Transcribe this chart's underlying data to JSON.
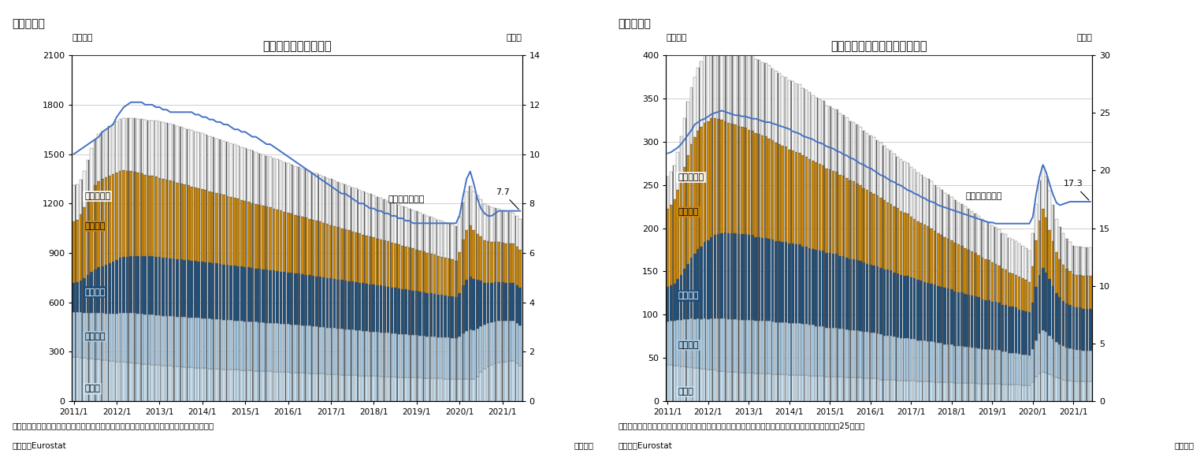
{
  "chart1": {
    "title": "失業率と国別失業者数",
    "fig_label": "（図表１）",
    "ylabel_left": "（万人）",
    "ylabel_right": "（％）",
    "ylim_left": [
      0,
      2100
    ],
    "ylim_right": [
      0,
      14
    ],
    "yticks_left": [
      0,
      300,
      600,
      900,
      1200,
      1500,
      1800,
      2100
    ],
    "yticks_right": [
      0,
      2,
      4,
      6,
      8,
      10,
      12,
      14
    ],
    "note1": "（注）季節調整値、その他の国はドイツ・フランス・イタリア・スペインを除くユーロ圏。",
    "source": "（資料）Eurostat",
    "monthly_label": "（月次）",
    "line_label": "失業率（右軸）",
    "line_end_value": "7.7"
  },
  "chart2": {
    "title": "若年失業率と国別若年失業者数",
    "fig_label": "（図表２）",
    "ylabel_left": "（万人）",
    "ylabel_right": "（％）",
    "ylim_left": [
      0,
      400
    ],
    "ylim_right": [
      0,
      30
    ],
    "yticks_left": [
      0,
      50,
      100,
      150,
      200,
      250,
      300,
      350,
      400
    ],
    "yticks_right": [
      0,
      5,
      10,
      15,
      20,
      25,
      30
    ],
    "note1": "（注）季節調整値、その他の国はドイツ・フランス・イタリア・スペインを除くユーロ圏。若年者は25才未満",
    "source": "（資料）Eurostat",
    "monthly_label": "（月次）",
    "line_label": "失業率（右軸）",
    "line_end_value": "17.3"
  },
  "x_labels": [
    "2011/1",
    "2012/1",
    "2013/1",
    "2014/1",
    "2015/1",
    "2016/1",
    "2017/1",
    "2018/1",
    "2019/1",
    "2020/1",
    "2021/1"
  ],
  "col_doitsu": "#b8d4e8",
  "col_france": "#b8d4e8",
  "col_italia": "#1f4e79",
  "col_spain": "#c8860a",
  "col_others": "#f5f5f5",
  "col_line": "#4472c4",
  "c1_doitsu": [
    270,
    268,
    265,
    262,
    260,
    258,
    255,
    253,
    250,
    248,
    246,
    244,
    241,
    239,
    237,
    235,
    233,
    231,
    229,
    227,
    225,
    223,
    222,
    220,
    218,
    216,
    215,
    213,
    212,
    210,
    209,
    207,
    206,
    205,
    203,
    202,
    201,
    199,
    198,
    197,
    196,
    195,
    193,
    192,
    191,
    190,
    189,
    188,
    187,
    186,
    185,
    184,
    183,
    182,
    181,
    180,
    179,
    178,
    177,
    176,
    175,
    174,
    173,
    172,
    171,
    170,
    169,
    168,
    167,
    166,
    165,
    164,
    163,
    162,
    161,
    160,
    159,
    158,
    157,
    156,
    155,
    154,
    153,
    152,
    152,
    151,
    150,
    149,
    148,
    147,
    146,
    145,
    145,
    144,
    143,
    142,
    142,
    141,
    140,
    139,
    139,
    138,
    137,
    137,
    136,
    136,
    135,
    134,
    134,
    133,
    133,
    132,
    132,
    150,
    175,
    195,
    210,
    220,
    230,
    235,
    238,
    240,
    242,
    244,
    230,
    215
  ],
  "c1_france": [
    270,
    272,
    274,
    276,
    278,
    280,
    282,
    283,
    284,
    285,
    287,
    289,
    292,
    295,
    298,
    300,
    302,
    303,
    303,
    303,
    302,
    302,
    302,
    302,
    302,
    302,
    302,
    303,
    303,
    303,
    303,
    303,
    303,
    303,
    303,
    303,
    303,
    303,
    302,
    302,
    302,
    302,
    301,
    301,
    300,
    300,
    299,
    299,
    298,
    298,
    297,
    297,
    296,
    296,
    295,
    295,
    294,
    294,
    293,
    292,
    292,
    291,
    290,
    290,
    289,
    288,
    288,
    287,
    286,
    285,
    284,
    283,
    282,
    281,
    280,
    279,
    278,
    277,
    276,
    275,
    274,
    273,
    272,
    271,
    270,
    269,
    268,
    267,
    266,
    265,
    264,
    263,
    262,
    261,
    260,
    259,
    258,
    257,
    256,
    255,
    254,
    253,
    252,
    252,
    251,
    250,
    249,
    248,
    260,
    280,
    295,
    305,
    300,
    290,
    280,
    270,
    265,
    260,
    255,
    252,
    250,
    248,
    247,
    246,
    245,
    244
  ],
  "c1_italia": [
    180,
    182,
    194,
    210,
    228,
    245,
    262,
    276,
    285,
    295,
    305,
    315,
    325,
    335,
    340,
    342,
    345,
    347,
    349,
    351,
    353,
    355,
    355,
    355,
    354,
    353,
    352,
    351,
    350,
    349,
    348,
    347,
    346,
    345,
    344,
    343,
    342,
    341,
    340,
    339,
    338,
    337,
    336,
    335,
    334,
    333,
    332,
    330,
    329,
    328,
    326,
    325,
    324,
    323,
    322,
    321,
    319,
    318,
    317,
    316,
    315,
    313,
    312,
    311,
    310,
    308,
    307,
    306,
    305,
    304,
    303,
    301,
    300,
    299,
    298,
    296,
    295,
    294,
    293,
    292,
    290,
    289,
    288,
    287,
    285,
    284,
    283,
    281,
    280,
    279,
    277,
    276,
    274,
    273,
    272,
    270,
    268,
    267,
    265,
    263,
    261,
    259,
    257,
    256,
    254,
    252,
    250,
    248,
    262,
    290,
    310,
    318,
    310,
    295,
    275,
    255,
    245,
    240,
    238,
    236,
    234,
    232,
    231,
    230,
    229,
    228
  ],
  "c1_spain": [
    370,
    380,
    400,
    430,
    460,
    490,
    510,
    525,
    530,
    530,
    530,
    530,
    530,
    530,
    525,
    520,
    515,
    510,
    505,
    500,
    495,
    490,
    488,
    485,
    482,
    478,
    475,
    472,
    468,
    465,
    462,
    458,
    455,
    451,
    448,
    445,
    442,
    438,
    435,
    432,
    428,
    425,
    422,
    418,
    415,
    412,
    408,
    405,
    402,
    398,
    395,
    392,
    388,
    385,
    382,
    379,
    375,
    372,
    369,
    366,
    362,
    359,
    356,
    353,
    350,
    347,
    343,
    340,
    337,
    334,
    330,
    327,
    324,
    321,
    318,
    315,
    312,
    308,
    305,
    302,
    299,
    296,
    293,
    290,
    287,
    284,
    281,
    278,
    275,
    272,
    269,
    266,
    264,
    261,
    258,
    255,
    252,
    249,
    247,
    244,
    241,
    238,
    236,
    233,
    231,
    228,
    225,
    222,
    248,
    280,
    302,
    310,
    295,
    280,
    268,
    258,
    252,
    248,
    245,
    242,
    240,
    238,
    237,
    236,
    235,
    234
  ],
  "c1_others": [
    220,
    215,
    210,
    220,
    240,
    265,
    280,
    285,
    290,
    295,
    300,
    305,
    310,
    315,
    318,
    320,
    322,
    325,
    328,
    330,
    332,
    335,
    338,
    340,
    342,
    343,
    344,
    345,
    345,
    344,
    343,
    342,
    341,
    340,
    339,
    338,
    337,
    335,
    334,
    333,
    332,
    330,
    329,
    327,
    326,
    324,
    323,
    321,
    320,
    318,
    317,
    315,
    313,
    312,
    310,
    308,
    307,
    305,
    303,
    302,
    300,
    298,
    297,
    295,
    293,
    292,
    290,
    288,
    286,
    285,
    283,
    281,
    279,
    277,
    275,
    273,
    271,
    269,
    267,
    265,
    263,
    261,
    259,
    257,
    255,
    253,
    251,
    249,
    247,
    245,
    243,
    241,
    239,
    237,
    235,
    233,
    231,
    229,
    227,
    225,
    223,
    221,
    219,
    217,
    215,
    213,
    211,
    209,
    215,
    225,
    235,
    242,
    238,
    232,
    226,
    220,
    215,
    210,
    206,
    202,
    198,
    195,
    192,
    189,
    186,
    183
  ],
  "c1_line": [
    10.0,
    10.1,
    10.2,
    10.3,
    10.4,
    10.5,
    10.6,
    10.7,
    10.9,
    11.0,
    11.1,
    11.2,
    11.5,
    11.7,
    11.9,
    12.0,
    12.1,
    12.1,
    12.1,
    12.1,
    12.0,
    12.0,
    12.0,
    11.9,
    11.9,
    11.8,
    11.8,
    11.7,
    11.7,
    11.7,
    11.7,
    11.7,
    11.7,
    11.7,
    11.6,
    11.6,
    11.5,
    11.5,
    11.4,
    11.4,
    11.3,
    11.3,
    11.2,
    11.2,
    11.1,
    11.0,
    11.0,
    10.9,
    10.9,
    10.8,
    10.7,
    10.7,
    10.6,
    10.5,
    10.4,
    10.4,
    10.3,
    10.2,
    10.1,
    10.0,
    9.9,
    9.8,
    9.7,
    9.6,
    9.5,
    9.4,
    9.3,
    9.2,
    9.1,
    9.0,
    8.9,
    8.8,
    8.7,
    8.6,
    8.5,
    8.4,
    8.4,
    8.3,
    8.2,
    8.1,
    8.0,
    8.0,
    7.9,
    7.8,
    7.8,
    7.7,
    7.7,
    7.6,
    7.6,
    7.5,
    7.5,
    7.4,
    7.4,
    7.3,
    7.3,
    7.2,
    7.2,
    7.2,
    7.2,
    7.2,
    7.2,
    7.2,
    7.2,
    7.2,
    7.2,
    7.2,
    7.2,
    7.2,
    7.5,
    8.3,
    9.0,
    9.3,
    8.8,
    8.2,
    7.8,
    7.6,
    7.5,
    7.5,
    7.6,
    7.7,
    7.7,
    7.7,
    7.7,
    7.7,
    7.7,
    7.7
  ],
  "c2_doitsu": [
    42,
    42,
    41,
    41,
    40,
    40,
    39,
    39,
    38,
    38,
    37,
    37,
    36,
    36,
    36,
    35,
    35,
    35,
    34,
    34,
    34,
    33,
    33,
    33,
    33,
    33,
    32,
    32,
    32,
    32,
    32,
    31,
    31,
    31,
    31,
    31,
    30,
    30,
    30,
    30,
    30,
    30,
    29,
    29,
    29,
    29,
    29,
    28,
    28,
    28,
    28,
    28,
    28,
    27,
    27,
    27,
    27,
    27,
    26,
    26,
    26,
    26,
    26,
    25,
    25,
    25,
    25,
    25,
    24,
    24,
    24,
    24,
    24,
    24,
    23,
    23,
    23,
    23,
    23,
    22,
    22,
    22,
    22,
    22,
    22,
    21,
    21,
    21,
    21,
    21,
    21,
    21,
    20,
    20,
    20,
    20,
    20,
    20,
    20,
    19,
    19,
    19,
    19,
    19,
    19,
    18,
    18,
    18,
    22,
    28,
    32,
    34,
    33,
    31,
    29,
    27,
    26,
    25,
    24,
    24,
    23,
    23,
    23,
    23,
    23,
    23
  ],
  "c2_france": [
    50,
    51,
    52,
    53,
    54,
    55,
    56,
    57,
    57,
    58,
    58,
    59,
    59,
    60,
    60,
    61,
    61,
    61,
    61,
    61,
    61,
    61,
    61,
    61,
    61,
    61,
    61,
    61,
    61,
    61,
    61,
    61,
    60,
    60,
    60,
    60,
    60,
    60,
    60,
    60,
    59,
    59,
    59,
    59,
    58,
    58,
    58,
    57,
    57,
    57,
    57,
    56,
    56,
    56,
    55,
    55,
    55,
    54,
    54,
    54,
    53,
    53,
    52,
    52,
    51,
    51,
    51,
    50,
    50,
    49,
    49,
    49,
    48,
    48,
    47,
    47,
    47,
    46,
    46,
    46,
    45,
    45,
    44,
    44,
    44,
    43,
    43,
    43,
    42,
    42,
    41,
    41,
    41,
    40,
    40,
    40,
    39,
    39,
    39,
    38,
    38,
    37,
    37,
    37,
    36,
    36,
    36,
    35,
    38,
    42,
    46,
    48,
    47,
    45,
    43,
    41,
    40,
    39,
    38,
    37,
    37,
    36,
    36,
    35,
    35,
    35
  ],
  "c2_italia": [
    40,
    41,
    43,
    47,
    52,
    58,
    64,
    70,
    75,
    80,
    84,
    88,
    91,
    94,
    96,
    97,
    98,
    99,
    99,
    99,
    99,
    99,
    99,
    99,
    98,
    98,
    97,
    97,
    96,
    96,
    95,
    95,
    94,
    94,
    93,
    93,
    92,
    92,
    91,
    91,
    90,
    90,
    89,
    88,
    88,
    87,
    87,
    86,
    86,
    85,
    85,
    84,
    84,
    83,
    82,
    82,
    81,
    81,
    80,
    79,
    79,
    78,
    78,
    77,
    76,
    76,
    75,
    74,
    74,
    73,
    72,
    72,
    71,
    70,
    70,
    69,
    68,
    68,
    67,
    67,
    66,
    65,
    65,
    64,
    63,
    63,
    62,
    62,
    61,
    60,
    60,
    59,
    59,
    58,
    57,
    57,
    56,
    56,
    55,
    54,
    54,
    53,
    53,
    52,
    51,
    51,
    50,
    50,
    54,
    62,
    68,
    72,
    69,
    65,
    61,
    57,
    54,
    52,
    51,
    50,
    49,
    49,
    49,
    49,
    49,
    49
  ],
  "c2_spain": [
    90,
    93,
    97,
    103,
    110,
    118,
    125,
    131,
    135,
    137,
    138,
    138,
    138,
    137,
    135,
    133,
    131,
    129,
    128,
    127,
    126,
    125,
    124,
    123,
    122,
    121,
    120,
    119,
    118,
    117,
    116,
    115,
    114,
    112,
    111,
    110,
    109,
    108,
    107,
    106,
    105,
    104,
    103,
    102,
    101,
    100,
    99,
    98,
    97,
    96,
    95,
    94,
    93,
    92,
    91,
    90,
    89,
    88,
    86,
    85,
    84,
    83,
    82,
    81,
    80,
    78,
    77,
    76,
    75,
    74,
    73,
    72,
    70,
    69,
    68,
    67,
    66,
    65,
    64,
    62,
    61,
    60,
    59,
    58,
    57,
    56,
    55,
    54,
    53,
    52,
    51,
    50,
    49,
    48,
    47,
    46,
    45,
    44,
    43,
    42,
    41,
    40,
    39,
    38,
    38,
    37,
    36,
    35,
    42,
    54,
    63,
    68,
    63,
    57,
    52,
    47,
    44,
    42,
    40,
    39,
    38,
    38,
    38,
    38,
    38,
    38
  ],
  "c2_others": [
    38,
    38,
    40,
    44,
    50,
    56,
    62,
    66,
    70,
    73,
    76,
    78,
    80,
    82,
    84,
    85,
    86,
    87,
    87,
    88,
    88,
    88,
    88,
    88,
    87,
    87,
    86,
    86,
    85,
    85,
    84,
    83,
    83,
    82,
    81,
    81,
    80,
    80,
    79,
    79,
    78,
    77,
    77,
    76,
    75,
    75,
    74,
    73,
    73,
    72,
    72,
    71,
    70,
    70,
    69,
    69,
    68,
    67,
    67,
    66,
    65,
    65,
    64,
    64,
    63,
    62,
    62,
    61,
    60,
    60,
    59,
    58,
    58,
    57,
    56,
    56,
    55,
    55,
    54,
    53,
    53,
    52,
    51,
    51,
    50,
    49,
    49,
    48,
    48,
    47,
    47,
    46,
    45,
    45,
    44,
    44,
    43,
    42,
    42,
    41,
    41,
    40,
    39,
    39,
    38,
    38,
    37,
    36,
    38,
    42,
    46,
    50,
    48,
    45,
    42,
    39,
    37,
    36,
    35,
    34,
    33,
    33,
    33,
    33,
    33,
    33
  ],
  "c2_line": [
    21.5,
    21.6,
    21.8,
    22.0,
    22.3,
    22.7,
    23.1,
    23.5,
    24.0,
    24.2,
    24.4,
    24.5,
    24.7,
    24.9,
    25.0,
    25.1,
    25.2,
    25.1,
    25.0,
    24.9,
    24.8,
    24.8,
    24.7,
    24.7,
    24.6,
    24.5,
    24.5,
    24.4,
    24.3,
    24.2,
    24.2,
    24.1,
    24.0,
    23.9,
    23.8,
    23.7,
    23.6,
    23.4,
    23.3,
    23.2,
    23.0,
    22.9,
    22.8,
    22.7,
    22.5,
    22.4,
    22.3,
    22.1,
    22.0,
    21.9,
    21.7,
    21.6,
    21.4,
    21.3,
    21.1,
    21.0,
    20.8,
    20.6,
    20.5,
    20.3,
    20.2,
    20.0,
    19.8,
    19.6,
    19.5,
    19.3,
    19.1,
    19.0,
    18.8,
    18.7,
    18.5,
    18.3,
    18.2,
    18.0,
    17.9,
    17.7,
    17.6,
    17.4,
    17.3,
    17.2,
    17.0,
    16.9,
    16.8,
    16.7,
    16.6,
    16.5,
    16.4,
    16.3,
    16.2,
    16.1,
    16.0,
    15.9,
    15.8,
    15.7,
    15.6,
    15.5,
    15.5,
    15.4,
    15.4,
    15.4,
    15.4,
    15.4,
    15.4,
    15.4,
    15.4,
    15.4,
    15.4,
    15.4,
    16.0,
    18.0,
    19.5,
    20.5,
    19.8,
    18.8,
    17.9,
    17.2,
    17.0,
    17.1,
    17.2,
    17.3,
    17.3,
    17.3,
    17.3,
    17.3,
    17.3,
    17.3
  ]
}
